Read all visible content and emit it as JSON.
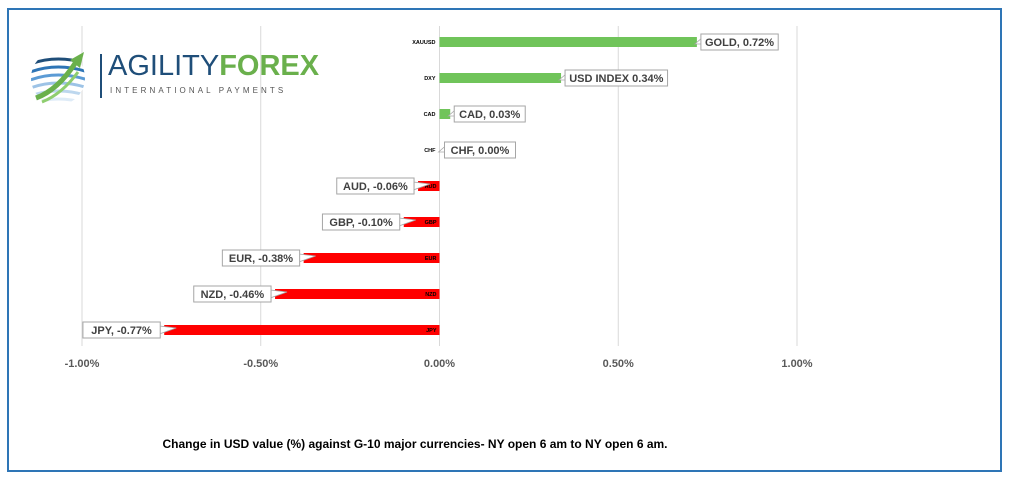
{
  "brand": {
    "name_part1": "AGILITY",
    "name_part2": "FOREX",
    "tagline": "INTERNATIONAL PAYMENTS",
    "colors": {
      "navy": "#1f4e79",
      "green": "#6ab04c"
    }
  },
  "caption": "Change in  USD value (%)  against  G-10 major currencies- NY open 6 am to NY open 6 am.",
  "chart_data": {
    "type": "bar",
    "orientation": "horizontal",
    "categories": [
      "XAUUSD",
      "DXY",
      "CAD",
      "CHF",
      "AUD",
      "GBP",
      "EUR",
      "NZD",
      "JPY"
    ],
    "values": [
      0.72,
      0.34,
      0.03,
      0.0,
      -0.06,
      -0.1,
      -0.38,
      -0.46,
      -0.77
    ],
    "data_labels": [
      "GOLD, 0.72%",
      "USD INDEX 0.34%",
      "CAD, 0.03%",
      "CHF, 0.00%",
      "AUD, -0.06%",
      "GBP, -0.10%",
      "EUR, -0.38%",
      "NZD, -0.46%",
      "JPY, -0.77%"
    ],
    "xlim": [
      -1.0,
      1.0
    ],
    "x_ticks": [
      -1.0,
      -0.5,
      0.0,
      0.5,
      1.0
    ],
    "x_tick_labels": [
      "-1.00%",
      "-0.50%",
      "0.00%",
      "0.50%",
      "1.00%"
    ],
    "grid": true,
    "colors": {
      "positive": "#70c45a",
      "negative": "#ff0000",
      "grid": "#d9d9d9",
      "label_border": "#a6a6a6"
    }
  }
}
